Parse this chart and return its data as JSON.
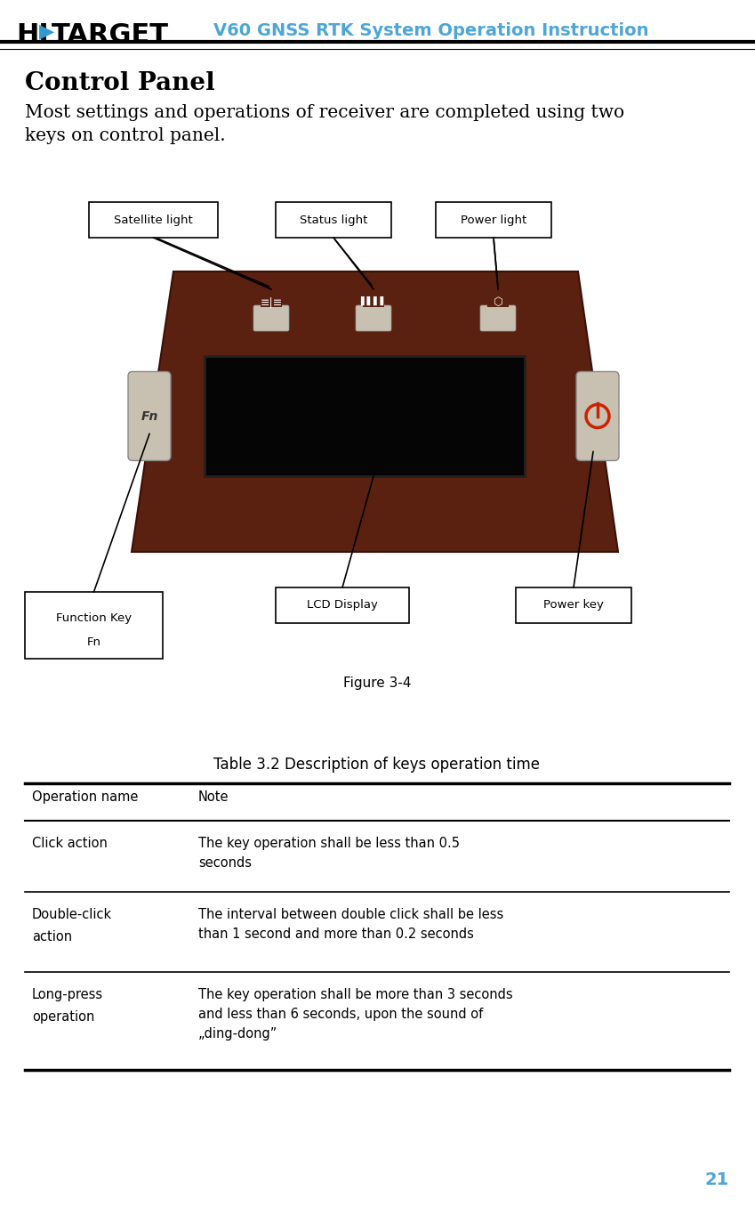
{
  "page_title": "V60 GNSS RTK System Operation Instruction",
  "logo_text": "HI•TARGET",
  "title_color": "#4da6d9",
  "section_title": "Control Panel",
  "body_text": "Most settings and operations of receiver are completed using two\nkeys on control panel.",
  "figure_caption": "Figure 3-4",
  "table_title": "Table 3.2 Description of keys operation time",
  "table_headers": [
    "Operation name",
    "Note"
  ],
  "table_rows": [
    [
      "Click action",
      "The key operation shall be less than 0.5\nseconds"
    ],
    [
      "Double-click\naction",
      "The interval between double click shall be less\nthan 1 second and more than 0.2 seconds"
    ],
    [
      "Long-press\noperation",
      "The key operation shall be more than 3 seconds\nand less than 6 seconds, upon the sound of\n„ding-dong”"
    ]
  ],
  "callout_labels": {
    "satellite_light": "Satellite light",
    "status_light": "Status light",
    "power_light": "Power light",
    "function_key": "Function Key\n\nFn",
    "lcd_display": "LCD Display",
    "power_key": "Power key"
  },
  "device_color": "#5a2010",
  "device_screen_color": "#0a0a0a",
  "page_number": "21",
  "bg_color": "#ffffff"
}
